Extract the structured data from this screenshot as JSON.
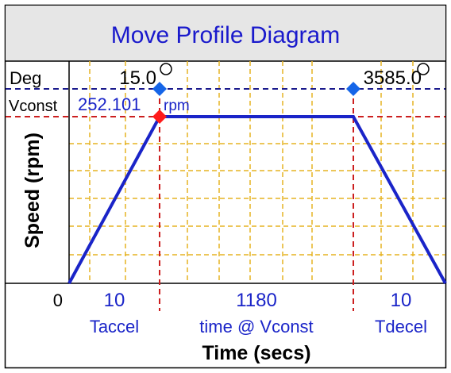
{
  "title": "Move Profile Diagram",
  "labels": {
    "deg": "Deg",
    "vconst": "Vconst",
    "ylabel": "Speed (rpm)",
    "xlabel": "Time (secs)",
    "zero": "0",
    "rpm_unit": "rpm"
  },
  "values": {
    "start_deg": "15.0",
    "end_deg": "3585.0",
    "vconst_rpm": "252.101"
  },
  "segments": [
    {
      "value": "10",
      "label": "Taccel"
    },
    {
      "value": "1180",
      "label": "time @ Vconst"
    },
    {
      "value": "10",
      "label": "Tdecel"
    }
  ],
  "colors": {
    "title_text": "#1a1acc",
    "header_bg": "#e6e6e6",
    "profile_line": "#1a24c8",
    "grid": "#e6b422",
    "red_dashed": "#cc1f1f",
    "blue_dashed": "#1a1a8c",
    "blue_marker": "#1565e8",
    "red_marker": "#ff1a1a"
  },
  "icons": {
    "start_handle": "circle-handle-icon",
    "end_handle": "circle-handle-icon"
  }
}
